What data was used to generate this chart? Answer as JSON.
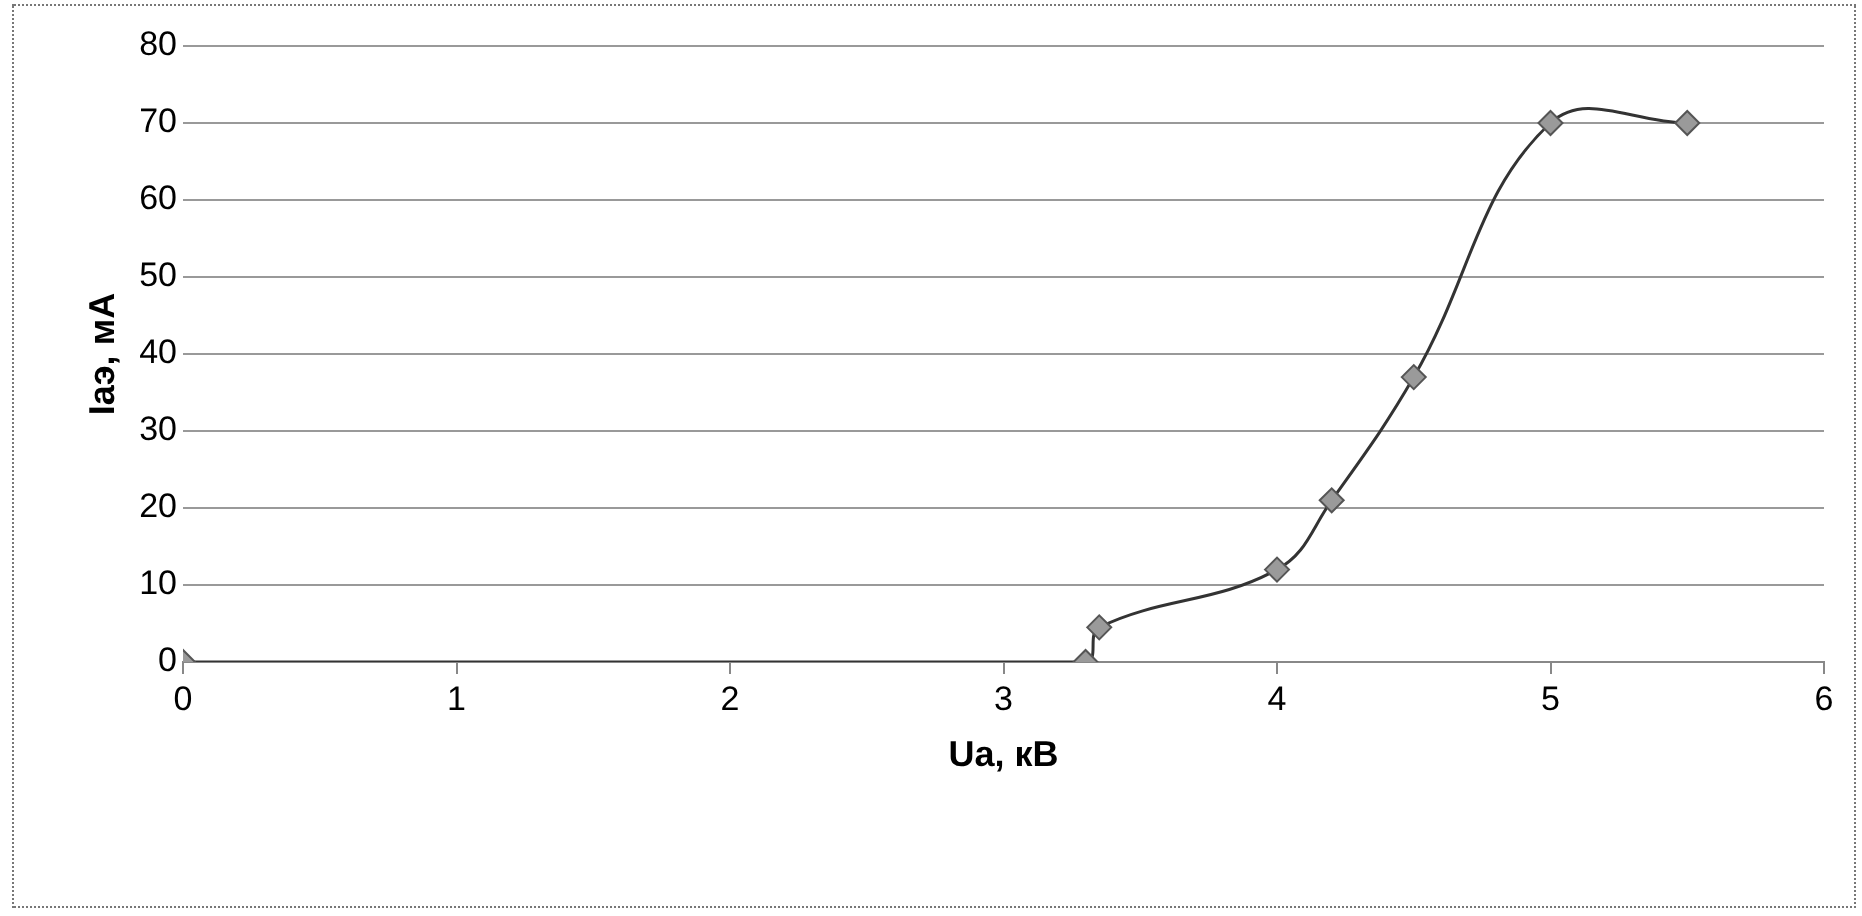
{
  "chart_data": {
    "type": "line",
    "xlabel": "Ua, кВ",
    "ylabel": "Iaэ, мА",
    "x": [
      0,
      3.3,
      3.35,
      4,
      4.2,
      4.5,
      5,
      5.5
    ],
    "series": [
      {
        "color": "#9a9a9a",
        "values": [
          0,
          0,
          4.5,
          12,
          21,
          37,
          70,
          70
        ]
      }
    ],
    "xlim": [
      0,
      6
    ],
    "xticks": [
      0,
      1,
      2,
      3,
      4,
      5,
      6
    ],
    "ylim": [
      0,
      80
    ],
    "yticks": [
      0,
      10,
      20,
      30,
      40,
      50,
      60,
      70,
      80
    ],
    "grid": "y",
    "legend": false,
    "marker": "diamond",
    "line_style": "solid"
  }
}
